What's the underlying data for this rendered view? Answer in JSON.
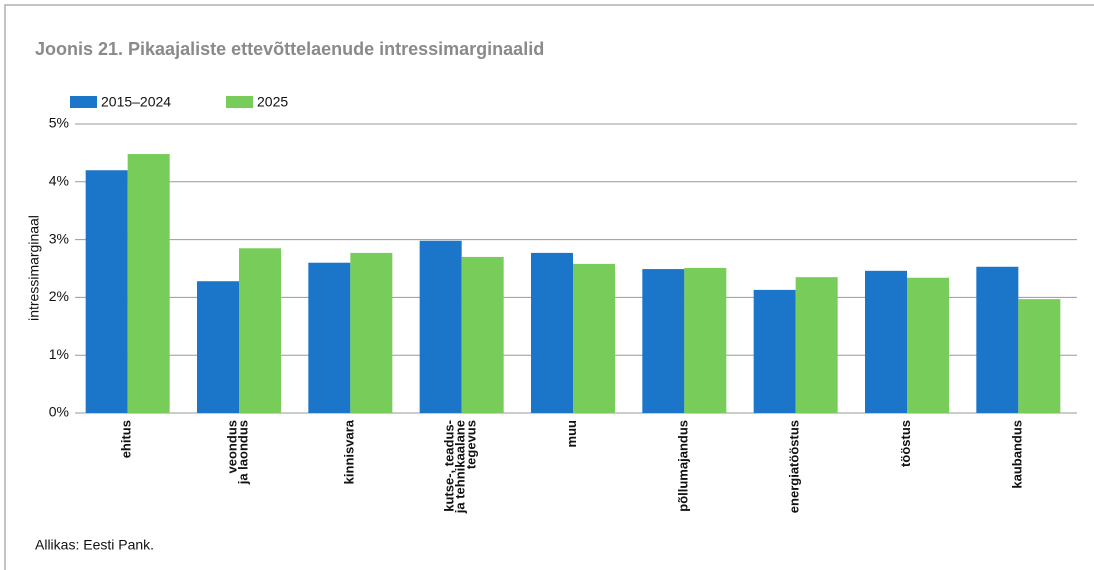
{
  "chart_data": {
    "type": "bar",
    "title": "Joonis 21. Pikaajaliste ettevõttelaenude intressimarginaalid",
    "y_label": "intressimarginaal",
    "source": "Allikas: Eesti Pank.",
    "categories": [
      "ehitus",
      "veondus\nja laondus",
      "kinnisvara",
      "kutse-, teadus-\nja tehnikaalane\ntegevus",
      "muu",
      "põllumajandus",
      "energiatööstus",
      "tööstus",
      "kaubandus"
    ],
    "series": [
      {
        "name": "2015–2024",
        "color": "#1b75c9",
        "values": [
          4.2,
          2.28,
          2.6,
          2.98,
          2.77,
          2.49,
          2.13,
          2.46,
          2.53
        ]
      },
      {
        "name": "2025",
        "color": "#77cc5a",
        "values": [
          4.48,
          2.85,
          2.77,
          2.7,
          2.58,
          2.51,
          2.35,
          2.34,
          1.97
        ]
      }
    ],
    "ylim": [
      0,
      5
    ],
    "yticks": [
      {
        "value": 0,
        "label": "0%"
      },
      {
        "value": 1,
        "label": "1%"
      },
      {
        "value": 2,
        "label": "2%"
      },
      {
        "value": 3,
        "label": "3%"
      },
      {
        "value": 4,
        "label": "4%"
      },
      {
        "value": 5,
        "label": "5%"
      }
    ],
    "grid": true
  }
}
